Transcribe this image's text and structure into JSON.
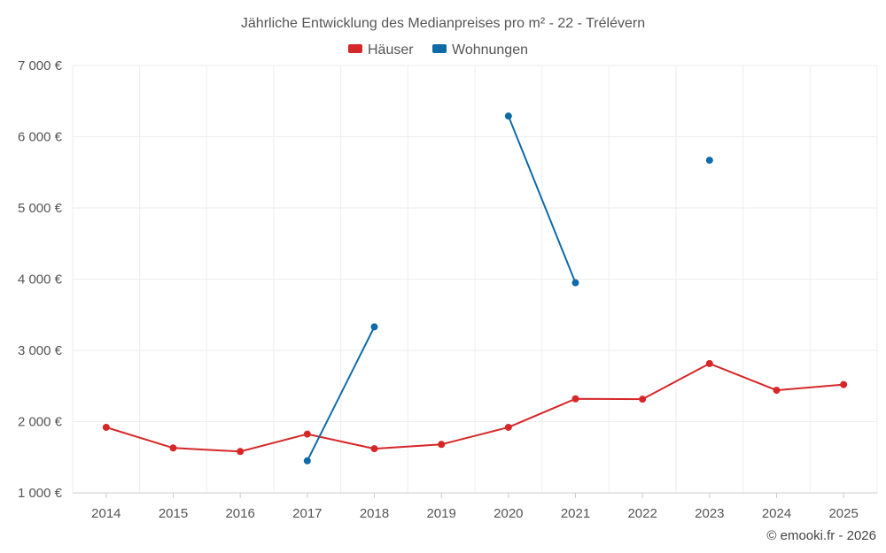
{
  "chart_data": {
    "type": "line",
    "title": "Jährliche Entwicklung des Medianpreises pro m² - 22 - Trélévern",
    "categories": [
      "2014",
      "2015",
      "2016",
      "2017",
      "2018",
      "2019",
      "2020",
      "2021",
      "2022",
      "2023",
      "2024",
      "2025"
    ],
    "series": [
      {
        "name": "Häuser",
        "color": "#d62728",
        "values": [
          1920,
          1630,
          1580,
          1825,
          1620,
          1680,
          1920,
          2320,
          2315,
          2815,
          2440,
          2520
        ]
      },
      {
        "name": "Wohnungen",
        "color": "#0e6ba8",
        "values": [
          null,
          null,
          null,
          1450,
          3330,
          null,
          6290,
          3950,
          null,
          5670,
          null,
          null
        ]
      }
    ],
    "ylim": [
      1000,
      7000
    ],
    "yticks": [
      1000,
      2000,
      3000,
      4000,
      5000,
      6000,
      7000
    ],
    "ytick_labels": [
      "1 000 €",
      "2 000 €",
      "3 000 €",
      "4 000 €",
      "5 000 €",
      "6 000 €",
      "7 000 €"
    ],
    "grid": true,
    "legend_position": "top-center",
    "credit": "© emooki.fr - 2026"
  }
}
